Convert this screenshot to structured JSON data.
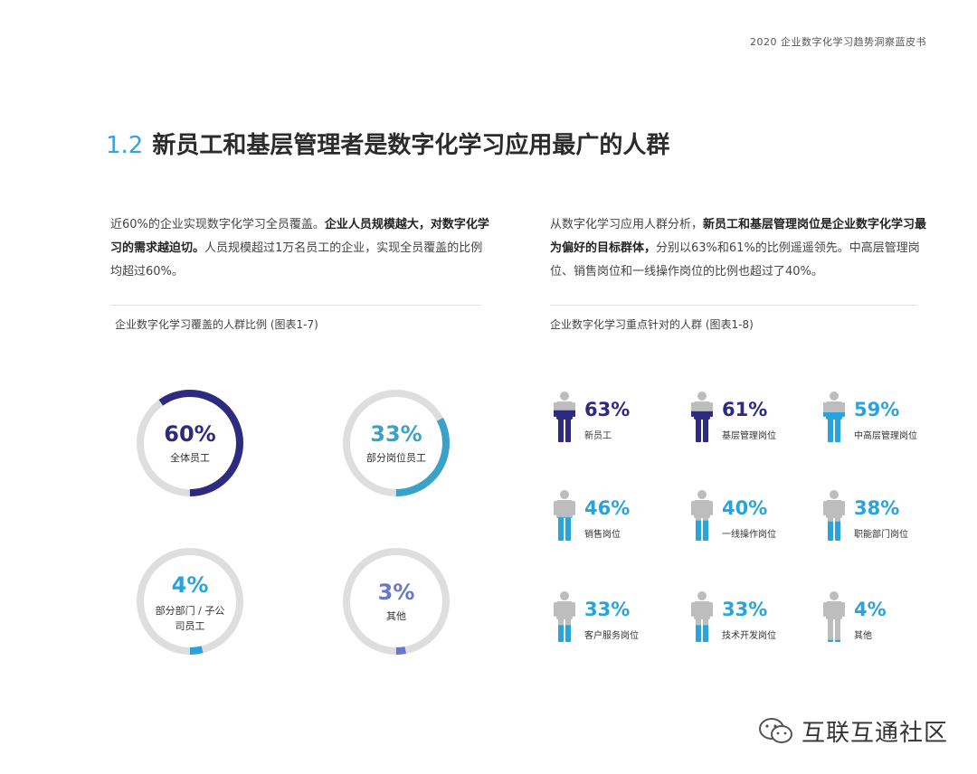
{
  "header": {
    "title": "2020 企业数字化学习趋势洞察蓝皮书"
  },
  "section": {
    "number": "1.2",
    "title": "新员工和基层管理者是数字化学习应用最广的人群"
  },
  "left_paragraph": {
    "part1": "近60%的企业实现数字化学习全员覆盖。",
    "bold": "企业人员规模越大，对数字化学习的需求越迫切。",
    "part2": "人员规模超过1万名员工的企业，实现全员覆盖的比例均超过60%。"
  },
  "right_paragraph": {
    "part1": "从数字化学习应用人群分析，",
    "bold": "新员工和基层管理岗位是企业数字化学习最为偏好的目标群体，",
    "part2": "分别以63%和61%的比例遥遥领先。中高层管理岗位、销售岗位和一线操作岗位的比例也超过了40%。"
  },
  "colors": {
    "navy": "#2e2a80",
    "teal": "#3aa2c8",
    "light_blue": "#29a3dc",
    "slate_blue": "#6a78c8",
    "track": "#dedede",
    "figure_gray": "#bdbdbd"
  },
  "chart_data": [
    {
      "type": "pie",
      "title": "企业数字化学习覆盖的人群比例 (图表1-7)",
      "categories": [
        "全体员工",
        "部分岗位员工",
        "部分部门 / 子公司员工",
        "其他"
      ],
      "values": [
        60,
        33,
        4,
        3
      ],
      "value_labels": [
        "60%",
        "33%",
        "4%",
        "3%"
      ]
    },
    {
      "type": "bar",
      "title": "企业数字化学习重点针对的人群 (图表1-8)",
      "categories": [
        "新员工",
        "基层管理岗位",
        "中高层管理岗位",
        "销售岗位",
        "一线操作岗位",
        "职能部门岗位",
        "客户服务岗位",
        "技术开发岗位",
        "其他"
      ],
      "values": [
        63,
        61,
        59,
        46,
        40,
        38,
        33,
        33,
        4
      ],
      "value_labels": [
        "63%",
        "61%",
        "59%",
        "46%",
        "40%",
        "38%",
        "33%",
        "33%",
        "4%"
      ]
    }
  ],
  "watermark": {
    "text": "互联互通社区"
  }
}
